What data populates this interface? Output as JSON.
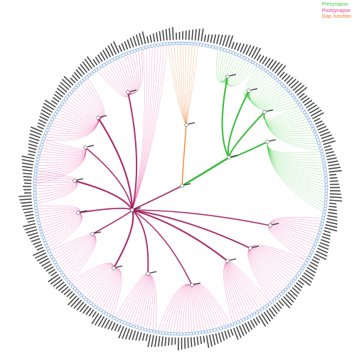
{
  "legend": [
    {
      "label": "Presynapse",
      "color": "#44cc44"
    },
    {
      "label": "Postsynapse",
      "color": "#e63b96"
    },
    {
      "label": "Gap Junction",
      "color": "#f07a28"
    }
  ],
  "colors": {
    "presynapse": "#44cc44",
    "postsynapse": "#e63b96",
    "postsynapse_dark": "#a0165c",
    "gap_junction": "#f07a28",
    "node_ring": "#6f9fd8",
    "label_text": "#222222"
  }
}
